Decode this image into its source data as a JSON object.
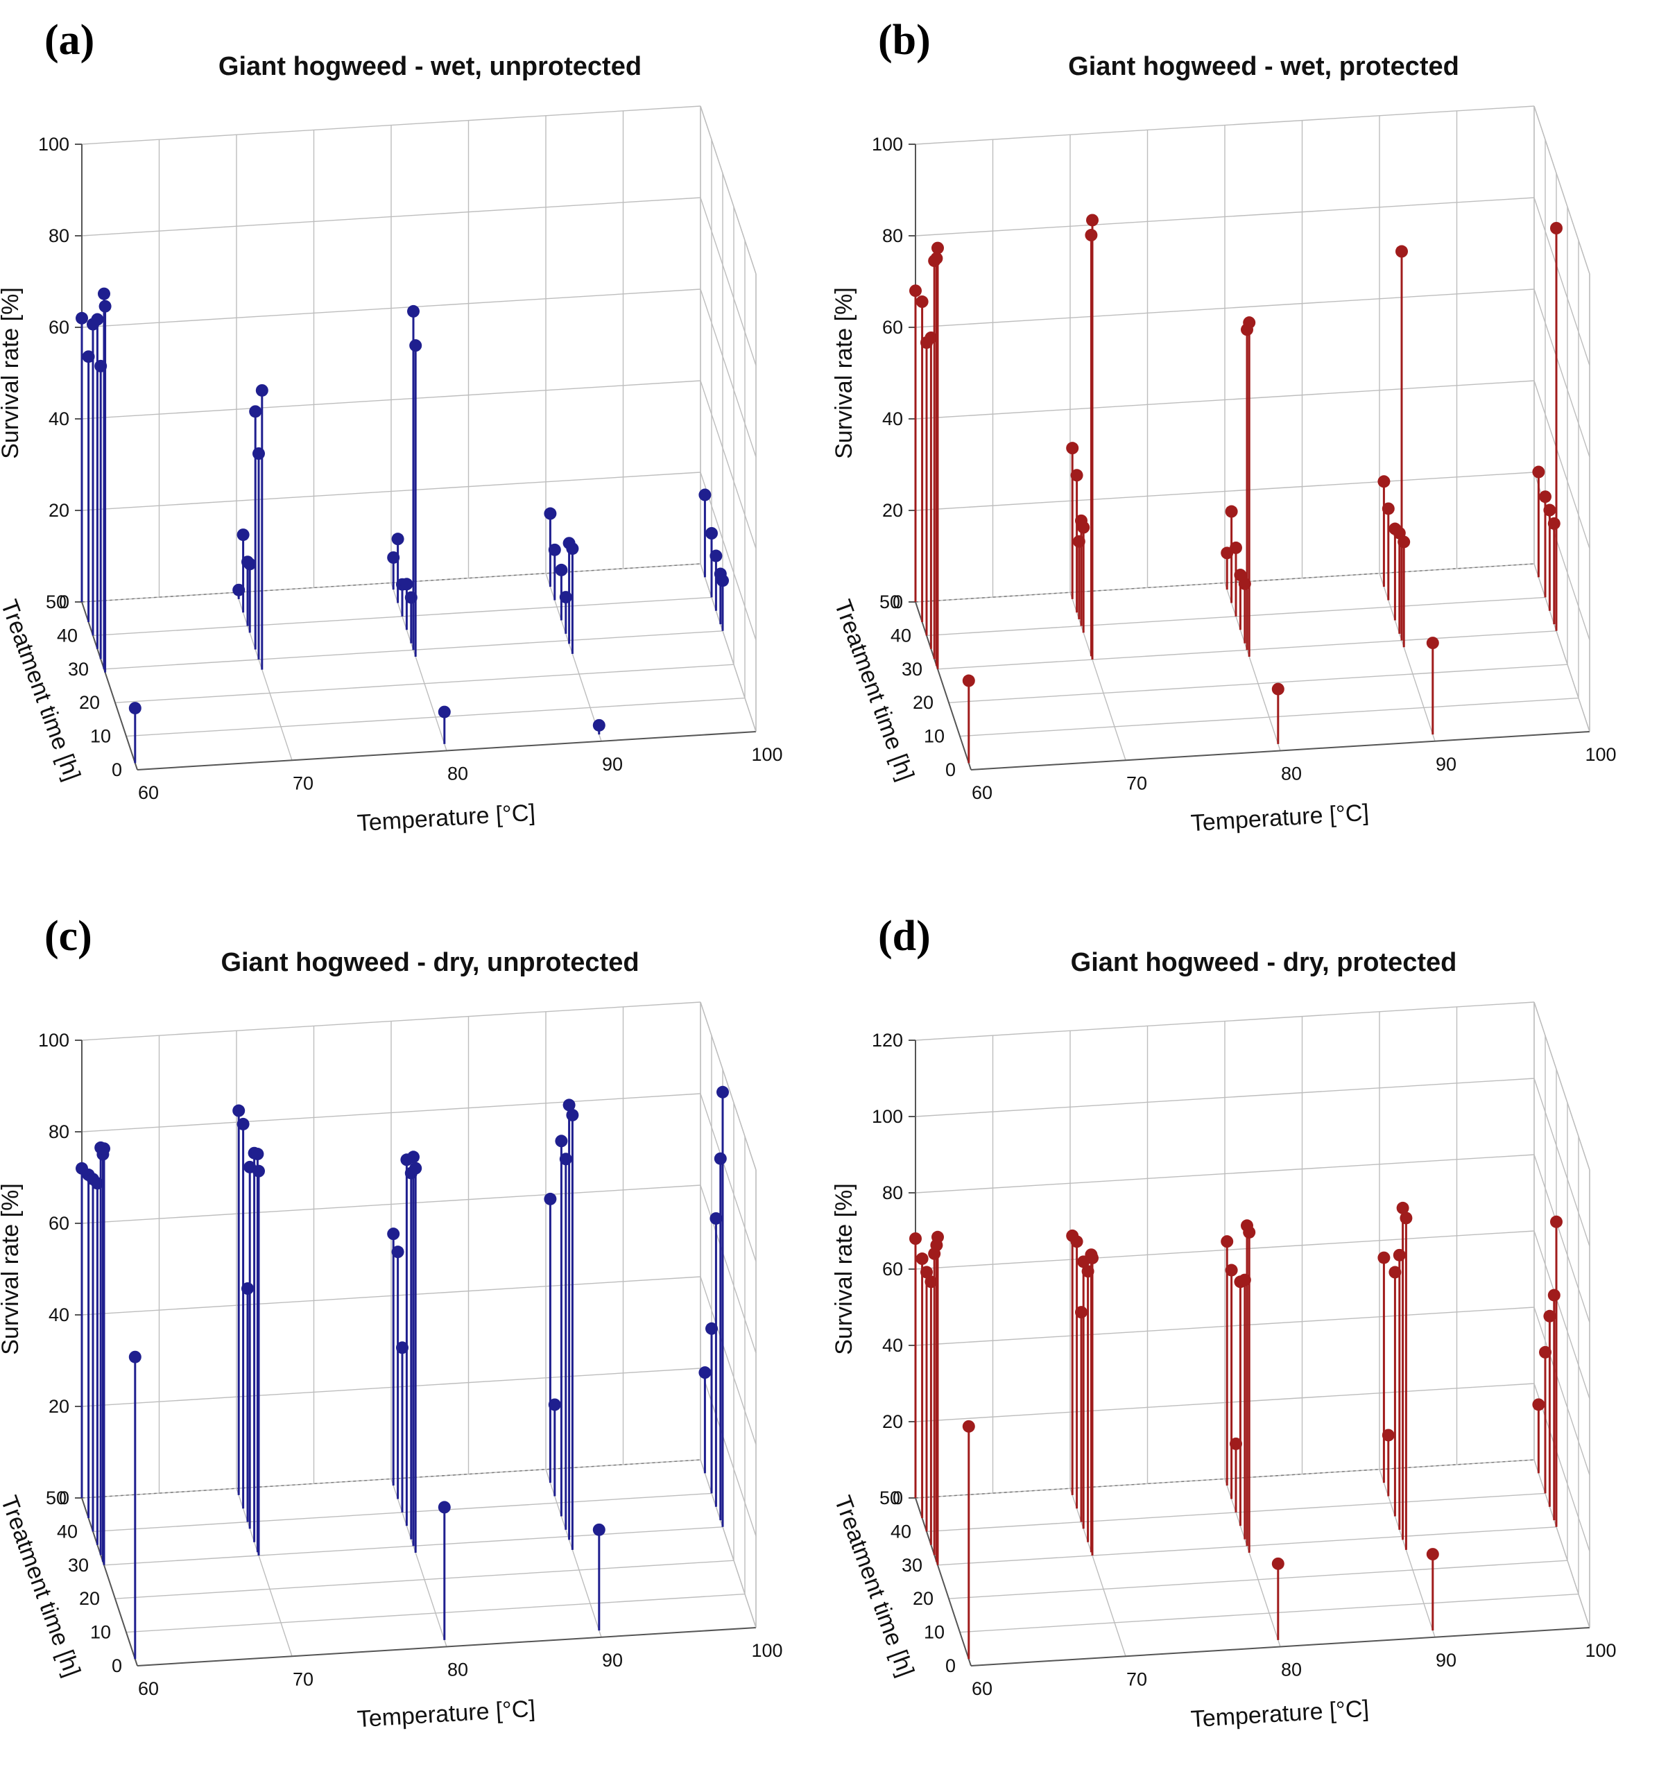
{
  "colors": {
    "blue": "#1f1f8f",
    "red": "#a01c1c"
  },
  "chart_data": [
    {
      "panel_letter": "(a)",
      "type": "scatter",
      "title": "Giant hogweed - wet, unprotected",
      "xlabel": "Temperature [°C]",
      "ylabel": "Treatment time [h]",
      "zlabel": "Survival rate [%]",
      "x_ticks": [
        "60",
        "70",
        "80",
        "90",
        "100"
      ],
      "y_ticks": [
        "0",
        "10",
        "20",
        "30",
        "40",
        "50"
      ],
      "z_ticks": [
        "0",
        "20",
        "40",
        "60",
        "80",
        "100"
      ],
      "zlim": [
        0,
        100
      ],
      "color": "blue",
      "points": [
        [
          60,
          50,
          62
        ],
        [
          60,
          44,
          58
        ],
        [
          60,
          40,
          68
        ],
        [
          60,
          36,
          72
        ],
        [
          60,
          33,
          64
        ],
        [
          60,
          30,
          82
        ],
        [
          60,
          29,
          80
        ],
        [
          60,
          2,
          12
        ],
        [
          70,
          48,
          2
        ],
        [
          70,
          44,
          17
        ],
        [
          70,
          40,
          14
        ],
        [
          70,
          38,
          15
        ],
        [
          70,
          33,
          52
        ],
        [
          70,
          30,
          45
        ],
        [
          70,
          27,
          61
        ],
        [
          80,
          48,
          7
        ],
        [
          80,
          44,
          14
        ],
        [
          80,
          40,
          7
        ],
        [
          80,
          36,
          10
        ],
        [
          80,
          32,
          10
        ],
        [
          80,
          30,
          74
        ],
        [
          80,
          28,
          68
        ],
        [
          80,
          2,
          7
        ],
        [
          90,
          46,
          16
        ],
        [
          90,
          42,
          11
        ],
        [
          90,
          36,
          11
        ],
        [
          90,
          32,
          8
        ],
        [
          90,
          29,
          22
        ],
        [
          90,
          26,
          23
        ],
        [
          90,
          2,
          2
        ],
        [
          100,
          46,
          18
        ],
        [
          100,
          40,
          14
        ],
        [
          100,
          36,
          12
        ],
        [
          100,
          32,
          11
        ],
        [
          100,
          30,
          11
        ]
      ]
    },
    {
      "panel_letter": "(b)",
      "type": "scatter",
      "title": "Giant hogweed - wet, protected",
      "xlabel": "Temperature [°C]",
      "ylabel": "Treatment time [h]",
      "zlabel": "Survival rate [%]",
      "x_ticks": [
        "60",
        "70",
        "80",
        "90",
        "100"
      ],
      "y_ticks": [
        "0",
        "10",
        "20",
        "30",
        "40",
        "50"
      ],
      "z_ticks": [
        "0",
        "20",
        "40",
        "60",
        "80",
        "100"
      ],
      "zlim": [
        0,
        100
      ],
      "color": "red",
      "points": [
        [
          60,
          50,
          68
        ],
        [
          60,
          44,
          70
        ],
        [
          60,
          40,
          64
        ],
        [
          60,
          36,
          68
        ],
        [
          60,
          33,
          87
        ],
        [
          60,
          31,
          89
        ],
        [
          60,
          30,
          92
        ],
        [
          60,
          2,
          18
        ],
        [
          70,
          48,
          33
        ],
        [
          70,
          44,
          30
        ],
        [
          70,
          42,
          17
        ],
        [
          70,
          40,
          23
        ],
        [
          70,
          38,
          23
        ],
        [
          70,
          31,
          92
        ],
        [
          70,
          30,
          96
        ],
        [
          80,
          48,
          8
        ],
        [
          80,
          44,
          20
        ],
        [
          80,
          40,
          15
        ],
        [
          80,
          36,
          12
        ],
        [
          80,
          32,
          13
        ],
        [
          80,
          30,
          70
        ],
        [
          80,
          28,
          73
        ],
        [
          80,
          2,
          12
        ],
        [
          90,
          46,
          23
        ],
        [
          90,
          42,
          20
        ],
        [
          90,
          36,
          20
        ],
        [
          90,
          32,
          22
        ],
        [
          90,
          30,
          85
        ],
        [
          90,
          28,
          23
        ],
        [
          90,
          2,
          20
        ],
        [
          100,
          46,
          23
        ],
        [
          100,
          40,
          22
        ],
        [
          100,
          36,
          22
        ],
        [
          100,
          32,
          22
        ],
        [
          100,
          30,
          88
        ]
      ]
    },
    {
      "panel_letter": "(c)",
      "type": "scatter",
      "title": "Giant hogweed - dry, unprotected",
      "xlabel": "Temperature [°C]",
      "ylabel": "Treatment time [h]",
      "zlabel": "Survival rate [%]",
      "x_ticks": [
        "60",
        "70",
        "80",
        "90",
        "100"
      ],
      "y_ticks": [
        "0",
        "10",
        "20",
        "30",
        "40",
        "50"
      ],
      "z_ticks": [
        "0",
        "20",
        "40",
        "60",
        "80",
        "100"
      ],
      "zlim": [
        0,
        100
      ],
      "color": "blue",
      "points": [
        [
          60,
          50,
          72
        ],
        [
          60,
          44,
          75
        ],
        [
          60,
          40,
          77
        ],
        [
          60,
          36,
          79
        ],
        [
          60,
          33,
          89
        ],
        [
          60,
          31,
          89
        ],
        [
          60,
          30,
          91
        ],
        [
          60,
          2,
          66
        ],
        [
          70,
          48,
          84
        ],
        [
          70,
          44,
          84
        ],
        [
          70,
          40,
          51
        ],
        [
          70,
          38,
          79
        ],
        [
          70,
          34,
          85
        ],
        [
          70,
          31,
          87
        ],
        [
          70,
          30,
          84
        ],
        [
          80,
          48,
          55
        ],
        [
          80,
          44,
          54
        ],
        [
          80,
          40,
          36
        ],
        [
          80,
          36,
          80
        ],
        [
          80,
          32,
          80
        ],
        [
          80,
          30,
          85
        ],
        [
          80,
          28,
          84
        ],
        [
          80,
          2,
          29
        ],
        [
          90,
          46,
          62
        ],
        [
          90,
          42,
          20
        ],
        [
          90,
          36,
          82
        ],
        [
          90,
          32,
          81
        ],
        [
          90,
          29,
          95
        ],
        [
          90,
          26,
          95
        ],
        [
          90,
          2,
          22
        ],
        [
          100,
          46,
          22
        ],
        [
          100,
          40,
          36
        ],
        [
          100,
          36,
          63
        ],
        [
          100,
          32,
          79
        ],
        [
          100,
          30,
          95
        ]
      ]
    },
    {
      "panel_letter": "(d)",
      "type": "scatter",
      "title": "Giant hogweed - dry, protected",
      "xlabel": "Temperature [°C]",
      "ylabel": "Treatment time [h]",
      "zlabel": "Survival rate [%]",
      "x_ticks": [
        "60",
        "70",
        "80",
        "90",
        "100"
      ],
      "y_ticks": [
        "0",
        "10",
        "20",
        "30",
        "40",
        "50"
      ],
      "z_ticks": [
        "0",
        "20",
        "40",
        "60",
        "80",
        "100",
        "120"
      ],
      "zlim": [
        0,
        120
      ],
      "color": "red",
      "points": [
        [
          60,
          50,
          68
        ],
        [
          60,
          44,
          68
        ],
        [
          60,
          40,
          68
        ],
        [
          60,
          36,
          69
        ],
        [
          60,
          33,
          79
        ],
        [
          60,
          31,
          83
        ],
        [
          60,
          30,
          86
        ],
        [
          60,
          2,
          61
        ],
        [
          70,
          48,
          68
        ],
        [
          70,
          44,
          70
        ],
        [
          70,
          40,
          55
        ],
        [
          70,
          38,
          70
        ],
        [
          70,
          34,
          71
        ],
        [
          70,
          31,
          78
        ],
        [
          70,
          30,
          78
        ],
        [
          80,
          48,
          64
        ],
        [
          80,
          44,
          60
        ],
        [
          80,
          40,
          18
        ],
        [
          80,
          36,
          64
        ],
        [
          80,
          32,
          68
        ],
        [
          80,
          30,
          84
        ],
        [
          80,
          28,
          84
        ],
        [
          80,
          2,
          20
        ],
        [
          90,
          46,
          59
        ],
        [
          90,
          42,
          16
        ],
        [
          90,
          36,
          64
        ],
        [
          90,
          32,
          72
        ],
        [
          90,
          29,
          87
        ],
        [
          90,
          26,
          87
        ],
        [
          90,
          2,
          20
        ],
        [
          100,
          46,
          18
        ],
        [
          100,
          40,
          37
        ],
        [
          100,
          36,
          50
        ],
        [
          100,
          32,
          59
        ],
        [
          100,
          30,
          80
        ]
      ]
    }
  ]
}
